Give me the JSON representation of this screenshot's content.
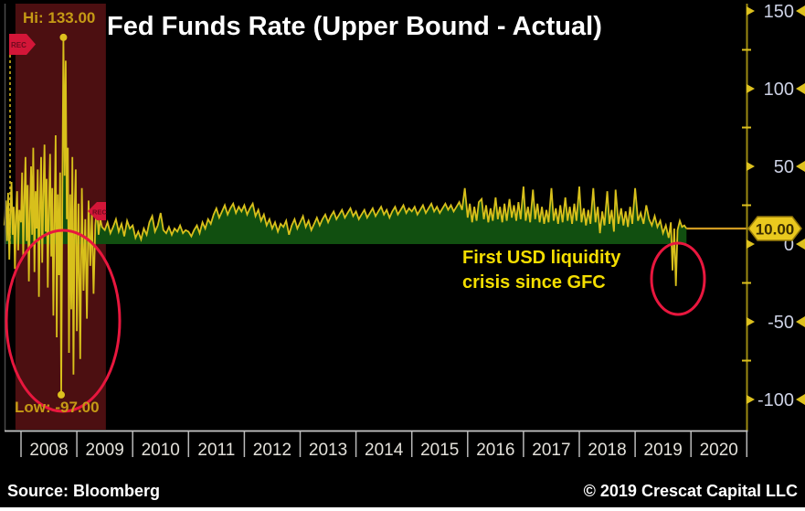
{
  "title": "Fed Funds Rate (Upper Bound - Actual)",
  "annotations": {
    "high_label": "Hi: 133.00",
    "low_label": "Low: -97.00",
    "crisis_note_line1": "First USD liquidity",
    "crisis_note_line2": "crisis since GFC",
    "rec_flag_label": "REC"
  },
  "footer": {
    "source": "Source: Bloomberg",
    "copyright": "© 2019 Crescat Capital LLC"
  },
  "colors": {
    "background": "#000000",
    "line": "#d8c01b",
    "area_fill": "#114f10",
    "recession_band": "#4c0f11",
    "accent_red": "#e8173e",
    "flag_red": "#d31638",
    "axis_line": "#9c8a12",
    "tick_yellow": "#ddc11e",
    "tick_label": "#ccd1e4",
    "year_label": "#e3e1da",
    "year_tick": "#b9b9b9",
    "baseline": "#c8c8c8",
    "badge_fill": "#eac91e",
    "badge_border": "#94790a",
    "badge_text": "#3c2f00",
    "hi_lo_text": "#c59a15",
    "note_yellow": "#f4de00",
    "last_line": "#cf9a22",
    "left_border": "#4a4a4a"
  },
  "chart_data": {
    "type": "line",
    "title": "Fed Funds Rate (Upper Bound - Actual)",
    "x_unit": "year",
    "y_unit": "basis points",
    "xlim": [
      2007.7,
      2021
    ],
    "ylim": [
      -119,
      154
    ],
    "grid": false,
    "legend": "none",
    "y_ticks_major": [
      150,
      100,
      50,
      0,
      -50,
      -100
    ],
    "y_ticks_minor": [
      125,
      75,
      25,
      -25,
      -75
    ],
    "x_ticks": [
      2008,
      2009,
      2010,
      2011,
      2012,
      2013,
      2014,
      2015,
      2016,
      2017,
      2018,
      2019,
      2020
    ],
    "last_value": 10.0,
    "last_value_label": "10.00",
    "high": {
      "x": 2008.76,
      "y": 133,
      "label": "Hi: 133.00"
    },
    "low": {
      "x": 2008.72,
      "y": -97,
      "label": "Low: -97.00"
    },
    "recession_band": {
      "from": 2007.9,
      "to": 2009.52
    },
    "points": [
      [
        2007.7,
        12
      ],
      [
        2007.73,
        28
      ],
      [
        2007.75,
        2
      ],
      [
        2007.77,
        33
      ],
      [
        2007.79,
        -10
      ],
      [
        2007.81,
        20
      ],
      [
        2007.83,
        40
      ],
      [
        2007.85,
        6
      ],
      [
        2007.87,
        24
      ],
      [
        2007.89,
        -16
      ],
      [
        2007.91,
        18
      ],
      [
        2007.93,
        34
      ],
      [
        2007.95,
        -4
      ],
      [
        2007.97,
        22
      ],
      [
        2008.0,
        14
      ],
      [
        2008.02,
        46
      ],
      [
        2008.04,
        -8
      ],
      [
        2008.06,
        30
      ],
      [
        2008.08,
        56
      ],
      [
        2008.1,
        2
      ],
      [
        2008.12,
        38
      ],
      [
        2008.14,
        -24
      ],
      [
        2008.16,
        20
      ],
      [
        2008.18,
        50
      ],
      [
        2008.2,
        6
      ],
      [
        2008.22,
        62
      ],
      [
        2008.24,
        -18
      ],
      [
        2008.26,
        34
      ],
      [
        2008.28,
        10
      ],
      [
        2008.3,
        48
      ],
      [
        2008.32,
        -34
      ],
      [
        2008.34,
        24
      ],
      [
        2008.36,
        56
      ],
      [
        2008.38,
        -12
      ],
      [
        2008.4,
        30
      ],
      [
        2008.42,
        64
      ],
      [
        2008.44,
        8
      ],
      [
        2008.46,
        42
      ],
      [
        2008.48,
        -28
      ],
      [
        2008.5,
        22
      ],
      [
        2008.52,
        58
      ],
      [
        2008.54,
        -8
      ],
      [
        2008.56,
        36
      ],
      [
        2008.58,
        -46
      ],
      [
        2008.6,
        20
      ],
      [
        2008.62,
        70
      ],
      [
        2008.64,
        -60
      ],
      [
        2008.66,
        32
      ],
      [
        2008.68,
        -20
      ],
      [
        2008.7,
        46
      ],
      [
        2008.72,
        -97
      ],
      [
        2008.74,
        28
      ],
      [
        2008.76,
        133
      ],
      [
        2008.78,
        44
      ],
      [
        2008.8,
        118
      ],
      [
        2008.82,
        16
      ],
      [
        2008.84,
        62
      ],
      [
        2008.86,
        -70
      ],
      [
        2008.88,
        32
      ],
      [
        2008.9,
        -42
      ],
      [
        2008.92,
        56
      ],
      [
        2008.94,
        -84
      ],
      [
        2008.96,
        22
      ],
      [
        2008.98,
        48
      ],
      [
        2009.0,
        -56
      ],
      [
        2009.03,
        26
      ],
      [
        2009.06,
        -74
      ],
      [
        2009.09,
        36
      ],
      [
        2009.12,
        -30
      ],
      [
        2009.15,
        16
      ],
      [
        2009.18,
        -48
      ],
      [
        2009.21,
        28
      ],
      [
        2009.24,
        -14
      ],
      [
        2009.27,
        20
      ],
      [
        2009.3,
        -32
      ],
      [
        2009.33,
        12
      ],
      [
        2009.36,
        24
      ],
      [
        2009.39,
        6
      ],
      [
        2009.42,
        16
      ],
      [
        2009.45,
        11
      ],
      [
        2009.5,
        9
      ],
      [
        2009.55,
        14
      ],
      [
        2009.6,
        7
      ],
      [
        2009.65,
        11
      ],
      [
        2009.7,
        16
      ],
      [
        2009.75,
        8
      ],
      [
        2009.8,
        13
      ],
      [
        2009.85,
        5
      ],
      [
        2009.9,
        15
      ],
      [
        2009.95,
        10
      ],
      [
        2010.0,
        12
      ],
      [
        2010.05,
        4
      ],
      [
        2010.1,
        8
      ],
      [
        2010.15,
        3
      ],
      [
        2010.2,
        10
      ],
      [
        2010.25,
        6
      ],
      [
        2010.3,
        14
      ],
      [
        2010.35,
        18
      ],
      [
        2010.4,
        8
      ],
      [
        2010.45,
        12
      ],
      [
        2010.5,
        20
      ],
      [
        2010.55,
        9
      ],
      [
        2010.6,
        7
      ],
      [
        2010.65,
        11
      ],
      [
        2010.7,
        6
      ],
      [
        2010.75,
        10
      ],
      [
        2010.8,
        8
      ],
      [
        2010.85,
        12
      ],
      [
        2010.9,
        7
      ],
      [
        2010.95,
        9
      ],
      [
        2011.0,
        8
      ],
      [
        2011.05,
        5
      ],
      [
        2011.1,
        9
      ],
      [
        2011.15,
        12
      ],
      [
        2011.2,
        7
      ],
      [
        2011.25,
        14
      ],
      [
        2011.3,
        10
      ],
      [
        2011.35,
        16
      ],
      [
        2011.4,
        13
      ],
      [
        2011.45,
        19
      ],
      [
        2011.5,
        23
      ],
      [
        2011.55,
        17
      ],
      [
        2011.6,
        21
      ],
      [
        2011.65,
        25
      ],
      [
        2011.7,
        19
      ],
      [
        2011.75,
        23
      ],
      [
        2011.8,
        26
      ],
      [
        2011.85,
        20
      ],
      [
        2011.9,
        24
      ],
      [
        2011.95,
        21
      ],
      [
        2012.0,
        25
      ],
      [
        2012.05,
        19
      ],
      [
        2012.1,
        23
      ],
      [
        2012.15,
        26
      ],
      [
        2012.2,
        18
      ],
      [
        2012.25,
        22
      ],
      [
        2012.3,
        15
      ],
      [
        2012.35,
        19
      ],
      [
        2012.4,
        12
      ],
      [
        2012.45,
        16
      ],
      [
        2012.5,
        10
      ],
      [
        2012.55,
        14
      ],
      [
        2012.6,
        8
      ],
      [
        2012.65,
        13
      ],
      [
        2012.7,
        11
      ],
      [
        2012.75,
        15
      ],
      [
        2012.8,
        6
      ],
      [
        2012.85,
        12
      ],
      [
        2012.9,
        16
      ],
      [
        2012.95,
        10
      ],
      [
        2013.0,
        14
      ],
      [
        2013.05,
        18
      ],
      [
        2013.1,
        11
      ],
      [
        2013.15,
        15
      ],
      [
        2013.2,
        9
      ],
      [
        2013.25,
        13
      ],
      [
        2013.3,
        17
      ],
      [
        2013.35,
        12
      ],
      [
        2013.4,
        16
      ],
      [
        2013.45,
        19
      ],
      [
        2013.5,
        14
      ],
      [
        2013.55,
        18
      ],
      [
        2013.6,
        21
      ],
      [
        2013.65,
        16
      ],
      [
        2013.7,
        19
      ],
      [
        2013.75,
        22
      ],
      [
        2013.8,
        17
      ],
      [
        2013.85,
        20
      ],
      [
        2013.9,
        23
      ],
      [
        2013.95,
        18
      ],
      [
        2014.0,
        21
      ],
      [
        2014.05,
        16
      ],
      [
        2014.1,
        19
      ],
      [
        2014.15,
        22
      ],
      [
        2014.2,
        17
      ],
      [
        2014.25,
        20
      ],
      [
        2014.3,
        23
      ],
      [
        2014.35,
        18
      ],
      [
        2014.4,
        21
      ],
      [
        2014.45,
        24
      ],
      [
        2014.5,
        19
      ],
      [
        2014.55,
        22
      ],
      [
        2014.6,
        17
      ],
      [
        2014.65,
        21
      ],
      [
        2014.7,
        24
      ],
      [
        2014.75,
        19
      ],
      [
        2014.8,
        22
      ],
      [
        2014.85,
        25
      ],
      [
        2014.9,
        20
      ],
      [
        2014.95,
        23
      ],
      [
        2015.0,
        21
      ],
      [
        2015.05,
        24
      ],
      [
        2015.1,
        19
      ],
      [
        2015.15,
        22
      ],
      [
        2015.2,
        25
      ],
      [
        2015.25,
        20
      ],
      [
        2015.3,
        23
      ],
      [
        2015.35,
        26
      ],
      [
        2015.4,
        21
      ],
      [
        2015.45,
        24
      ],
      [
        2015.5,
        20
      ],
      [
        2015.55,
        23
      ],
      [
        2015.6,
        26
      ],
      [
        2015.65,
        22
      ],
      [
        2015.7,
        25
      ],
      [
        2015.75,
        21
      ],
      [
        2015.8,
        24
      ],
      [
        2015.85,
        27
      ],
      [
        2015.9,
        22
      ],
      [
        2015.95,
        36
      ],
      [
        2016.0,
        17
      ],
      [
        2016.04,
        26
      ],
      [
        2016.08,
        14
      ],
      [
        2016.12,
        24
      ],
      [
        2016.16,
        15
      ],
      [
        2016.2,
        27
      ],
      [
        2016.25,
        29
      ],
      [
        2016.29,
        16
      ],
      [
        2016.33,
        25
      ],
      [
        2016.37,
        14
      ],
      [
        2016.41,
        23
      ],
      [
        2016.45,
        15
      ],
      [
        2016.5,
        30
      ],
      [
        2016.54,
        16
      ],
      [
        2016.58,
        24
      ],
      [
        2016.62,
        14
      ],
      [
        2016.66,
        26
      ],
      [
        2016.7,
        15
      ],
      [
        2016.75,
        29
      ],
      [
        2016.79,
        17
      ],
      [
        2016.83,
        25
      ],
      [
        2016.87,
        15
      ],
      [
        2016.91,
        27
      ],
      [
        2016.95,
        16
      ],
      [
        2017.0,
        37
      ],
      [
        2017.04,
        15
      ],
      [
        2017.08,
        24
      ],
      [
        2017.12,
        14
      ],
      [
        2017.17,
        35
      ],
      [
        2017.21,
        16
      ],
      [
        2017.25,
        26
      ],
      [
        2017.29,
        14
      ],
      [
        2017.33,
        24
      ],
      [
        2017.37,
        13
      ],
      [
        2017.41,
        22
      ],
      [
        2017.45,
        14
      ],
      [
        2017.5,
        36
      ],
      [
        2017.54,
        15
      ],
      [
        2017.58,
        23
      ],
      [
        2017.62,
        13
      ],
      [
        2017.66,
        25
      ],
      [
        2017.7,
        14
      ],
      [
        2017.75,
        30
      ],
      [
        2017.79,
        15
      ],
      [
        2017.83,
        24
      ],
      [
        2017.87,
        13
      ],
      [
        2017.91,
        26
      ],
      [
        2017.95,
        15
      ],
      [
        2018.0,
        37
      ],
      [
        2018.04,
        14
      ],
      [
        2018.08,
        23
      ],
      [
        2018.12,
        12
      ],
      [
        2018.16,
        22
      ],
      [
        2018.2,
        13
      ],
      [
        2018.25,
        36
      ],
      [
        2018.29,
        14
      ],
      [
        2018.33,
        24
      ],
      [
        2018.37,
        7
      ],
      [
        2018.41,
        21
      ],
      [
        2018.45,
        12
      ],
      [
        2018.5,
        34
      ],
      [
        2018.54,
        13
      ],
      [
        2018.58,
        22
      ],
      [
        2018.62,
        8
      ],
      [
        2018.65,
        35
      ],
      [
        2018.7,
        13
      ],
      [
        2018.75,
        23
      ],
      [
        2018.79,
        12
      ],
      [
        2018.83,
        21
      ],
      [
        2018.87,
        11
      ],
      [
        2018.91,
        24
      ],
      [
        2018.95,
        13
      ],
      [
        2019.0,
        36
      ],
      [
        2019.05,
        15
      ],
      [
        2019.1,
        20
      ],
      [
        2019.15,
        13
      ],
      [
        2019.2,
        25
      ],
      [
        2019.25,
        16
      ],
      [
        2019.3,
        12
      ],
      [
        2019.35,
        18
      ],
      [
        2019.4,
        11
      ],
      [
        2019.45,
        15
      ],
      [
        2019.5,
        7
      ],
      [
        2019.55,
        12
      ],
      [
        2019.6,
        4
      ],
      [
        2019.64,
        14
      ],
      [
        2019.67,
        -17
      ],
      [
        2019.7,
        10
      ],
      [
        2019.73,
        -27
      ],
      [
        2019.76,
        9
      ],
      [
        2019.8,
        15
      ],
      [
        2019.84,
        11
      ],
      [
        2019.88,
        12
      ],
      [
        2019.92,
        10
      ]
    ]
  }
}
